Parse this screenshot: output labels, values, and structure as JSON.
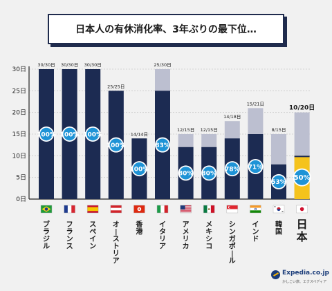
{
  "title": "日本人の有休消化率、3年ぶりの最下位…",
  "brand": {
    "name": "Expedia.co.jp",
    "tagline": "かしこい旅、エクスペディア"
  },
  "colors": {
    "taken": "#1c2b52",
    "granted": "#bcbfd0",
    "japan_taken": "#f5c31c",
    "badge": "#1e93d6",
    "title_border": "#1f2b4d"
  },
  "chart_data": {
    "type": "bar",
    "title": "日本人の有休消化率、3年ぶりの最下位…",
    "y_ticks": [
      "0日",
      "5日",
      "10日",
      "15日",
      "20日",
      "25日",
      "30日"
    ],
    "ylim": [
      0,
      30
    ],
    "categories": [
      "ブラジル",
      "フランス",
      "スペイン",
      "オーストリア",
      "香港",
      "イタリア",
      "アメリカ",
      "メキシコ",
      "シンガポール",
      "インド",
      "韓国",
      "日本"
    ],
    "series": [
      {
        "values": [
          30,
          30,
          30,
          25,
          14,
          25,
          12,
          12,
          14,
          15,
          8,
          10
        ]
      },
      {
        "values": [
          30,
          30,
          30,
          25,
          14,
          30,
          15,
          15,
          18,
          21,
          15,
          20
        ]
      }
    ],
    "fraction_labels": [
      "30/30日",
      "30/30日",
      "30/30日",
      "25/25日",
      "14/14日",
      "25/30日",
      "12/15日",
      "12/15日",
      "14/18日",
      "15/21日",
      "8/15日",
      "10/20日"
    ],
    "percent_labels": [
      "100%",
      "100%",
      "100%",
      "100%",
      "100%",
      "83%",
      "80%",
      "80%",
      "78%",
      "71%",
      "53%",
      "50%"
    ],
    "flags": [
      "brazil-flag-icon",
      "france-flag-icon",
      "spain-flag-icon",
      "austria-flag-icon",
      "hong-kong-flag-icon",
      "italy-flag-icon",
      "usa-flag-icon",
      "mexico-flag-icon",
      "singapore-flag-icon",
      "india-flag-icon",
      "korea-flag-icon",
      "japan-flag-icon"
    ],
    "highlight": "日本"
  }
}
